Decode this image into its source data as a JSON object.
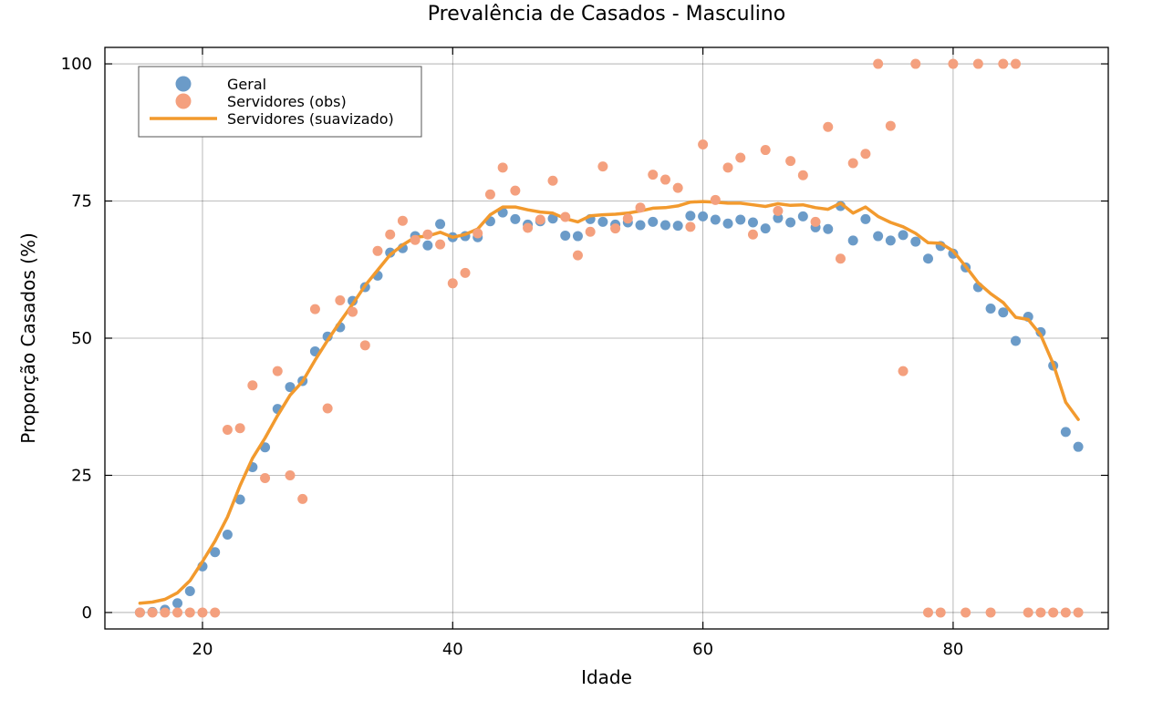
{
  "chart_data": {
    "type": "scatter",
    "title": "Prevalência de Casados - Masculino",
    "xlabel": "Idade",
    "ylabel": "Proporção Casados (%)",
    "xlim": [
      12.2,
      92.4
    ],
    "ylim": [
      -3,
      103
    ],
    "xticks": [
      20,
      40,
      60,
      80
    ],
    "yticks": [
      0,
      25,
      50,
      75,
      100
    ],
    "grid": true,
    "legend_position": "top-left",
    "series": [
      {
        "name": "Geral",
        "kind": "points",
        "color": "#6b9bc8",
        "x": [
          15,
          16,
          17,
          18,
          19,
          20,
          21,
          22,
          23,
          24,
          25,
          26,
          27,
          28,
          29,
          30,
          31,
          32,
          33,
          34,
          35,
          36,
          37,
          38,
          39,
          40,
          41,
          42,
          43,
          44,
          45,
          46,
          47,
          48,
          49,
          50,
          51,
          52,
          53,
          54,
          55,
          56,
          57,
          58,
          59,
          60,
          61,
          62,
          63,
          64,
          65,
          66,
          67,
          68,
          69,
          70,
          71,
          72,
          73,
          74,
          75,
          76,
          77,
          78,
          79,
          80,
          81,
          82,
          83,
          84,
          85,
          86,
          87,
          88,
          89,
          90
        ],
        "y": [
          0,
          0.1,
          0.5,
          1.7,
          3.9,
          8.4,
          11,
          14.2,
          20.6,
          26.5,
          30.1,
          37.1,
          41.1,
          42.2,
          47.6,
          50.3,
          52,
          56.8,
          59.3,
          61.4,
          65.6,
          66.4,
          68.6,
          66.9,
          70.8,
          68.4,
          68.6,
          68.4,
          71.3,
          72.9,
          71.7,
          70.7,
          71.3,
          71.8,
          68.7,
          68.6,
          71.7,
          71.2,
          70.7,
          71.1,
          70.6,
          71.2,
          70.6,
          70.5,
          72.3,
          72.2,
          71.6,
          70.9,
          71.6,
          71.1,
          70,
          71.9,
          71.1,
          72.2,
          70.2,
          69.9,
          74.1,
          67.8,
          71.7,
          68.6,
          67.8,
          68.8,
          67.6,
          64.5,
          66.8,
          65.4,
          62.9,
          59.3,
          55.4,
          54.7,
          49.5,
          53.9,
          51.1,
          45,
          32.9,
          30.2
        ]
      },
      {
        "name": "Servidores (obs)",
        "kind": "points",
        "color": "#f4a07e",
        "x": [
          15,
          16,
          17,
          18,
          19,
          20,
          21,
          22,
          23,
          24,
          25,
          26,
          27,
          28,
          29,
          30,
          31,
          32,
          33,
          34,
          35,
          36,
          37,
          38,
          39,
          40,
          41,
          42,
          43,
          44,
          45,
          46,
          47,
          48,
          49,
          50,
          51,
          52,
          53,
          54,
          55,
          56,
          57,
          58,
          59,
          60,
          61,
          62,
          63,
          64,
          65,
          66,
          67,
          68,
          69,
          70,
          71,
          72,
          73,
          74,
          75,
          76,
          77,
          78,
          79,
          80,
          81,
          82,
          83,
          84,
          85,
          86,
          87,
          88,
          89,
          90
        ],
        "y": [
          0,
          0,
          0,
          0,
          0,
          0,
          0,
          33.3,
          33.6,
          41.4,
          24.5,
          44,
          25,
          20.7,
          55.3,
          37.2,
          56.9,
          54.8,
          48.7,
          65.9,
          68.9,
          71.4,
          67.9,
          68.9,
          67.1,
          60,
          61.9,
          69.1,
          76.2,
          81.1,
          76.9,
          70.1,
          71.6,
          78.7,
          72.1,
          65.1,
          69.4,
          81.3,
          70,
          71.8,
          73.8,
          79.8,
          78.9,
          77.4,
          70.3,
          85.3,
          75.2,
          81.1,
          82.9,
          68.9,
          84.3,
          73.2,
          82.3,
          79.7,
          71.2,
          88.5,
          64.5,
          81.9,
          83.6,
          100,
          88.7,
          44,
          100,
          0,
          0,
          100,
          0,
          100,
          0,
          100,
          100,
          0,
          0,
          0,
          0,
          0
        ]
      },
      {
        "name": "Servidores (suavizado)",
        "kind": "line",
        "color": "#f29a2e",
        "x": [
          15,
          16,
          17,
          18,
          19,
          20,
          21,
          22,
          23,
          24,
          25,
          26,
          27,
          28,
          29,
          30,
          31,
          32,
          33,
          34,
          35,
          36,
          37,
          38,
          39,
          40,
          41,
          42,
          43,
          44,
          45,
          46,
          47,
          48,
          49,
          50,
          51,
          52,
          53,
          54,
          55,
          56,
          57,
          58,
          59,
          60,
          61,
          62,
          63,
          64,
          65,
          66,
          67,
          68,
          69,
          70,
          71,
          72,
          73,
          74,
          75,
          76,
          77,
          78,
          79,
          80,
          81,
          82,
          83,
          84,
          85,
          86,
          87,
          88,
          89,
          90
        ],
        "y": [
          1.7,
          1.9,
          2.4,
          3.6,
          5.8,
          9.3,
          13,
          17.4,
          23.1,
          28.1,
          31.8,
          35.9,
          39.6,
          42.1,
          46,
          49.6,
          53,
          56.2,
          59.6,
          62.4,
          65.2,
          67,
          68.4,
          68.6,
          69.3,
          68.4,
          68.9,
          69.9,
          72.5,
          73.9,
          73.9,
          73.4,
          73,
          72.8,
          71.8,
          71.2,
          72.3,
          72.5,
          72.6,
          72.8,
          73.2,
          73.7,
          73.8,
          74.1,
          74.8,
          74.9,
          74.8,
          74.6,
          74.6,
          74.3,
          74,
          74.5,
          74.2,
          74.3,
          73.8,
          73.5,
          74.6,
          72.8,
          73.9,
          72.2,
          71.1,
          70.3,
          69.1,
          67.4,
          67.3,
          65.9,
          63.1,
          60.1,
          58.1,
          56.5,
          53.8,
          53.4,
          50.6,
          45.3,
          38.3,
          35.2
        ]
      }
    ]
  }
}
